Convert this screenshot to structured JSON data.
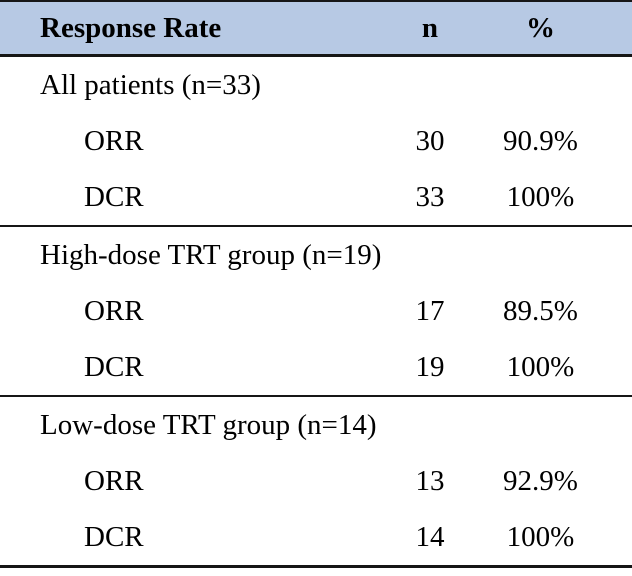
{
  "table": {
    "header": {
      "response_rate": "Response Rate",
      "n": "n",
      "percent": "%"
    },
    "sections": [
      {
        "title": "All patients (n=33)",
        "rows": [
          {
            "label": "ORR",
            "n": "30",
            "pct": "90.9%"
          },
          {
            "label": "DCR",
            "n": "33",
            "pct": "100%"
          }
        ]
      },
      {
        "title": "High-dose TRT group (n=19)",
        "rows": [
          {
            "label": "ORR",
            "n": "17",
            "pct": "89.5%"
          },
          {
            "label": "DCR",
            "n": "19",
            "pct": "100%"
          }
        ]
      },
      {
        "title": "Low-dose TRT group (n=14)",
        "rows": [
          {
            "label": "ORR",
            "n": "13",
            "pct": "92.9%"
          },
          {
            "label": "DCR",
            "n": "14",
            "pct": "100%"
          }
        ]
      }
    ],
    "colors": {
      "header_bg": "#b7c9e4",
      "border": "#161616"
    }
  }
}
